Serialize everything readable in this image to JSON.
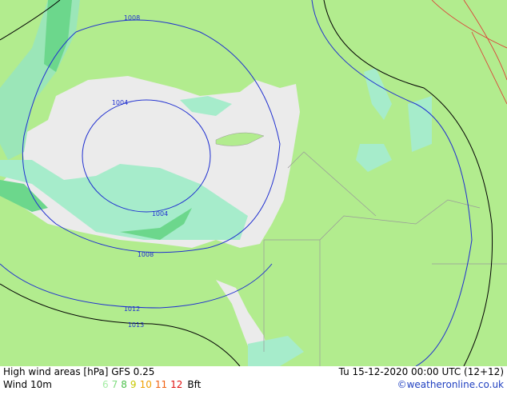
{
  "header": {
    "title": "High wind areas [hPa] GFS 0.25",
    "datetime": "Tu 15-12-2020 00:00 UTC (12+12)",
    "subtitle": "Wind 10m",
    "credit": "©weatheronline.co.uk"
  },
  "legend": {
    "items": [
      {
        "label": "6",
        "color": "#a6eda6"
      },
      {
        "label": "7",
        "color": "#80dc80"
      },
      {
        "label": "8",
        "color": "#4cc04c"
      },
      {
        "label": "9",
        "color": "#c8c800"
      },
      {
        "label": "10",
        "color": "#f0a000"
      },
      {
        "label": "11",
        "color": "#f06010"
      },
      {
        "label": "12",
        "color": "#e01010"
      }
    ],
    "unit": "Bft"
  },
  "isobars": [
    {
      "label": "1008"
    },
    {
      "label": "1004"
    },
    {
      "label": "1004"
    },
    {
      "label": "1008"
    },
    {
      "label": "1012"
    },
    {
      "label": "1013"
    }
  ]
}
